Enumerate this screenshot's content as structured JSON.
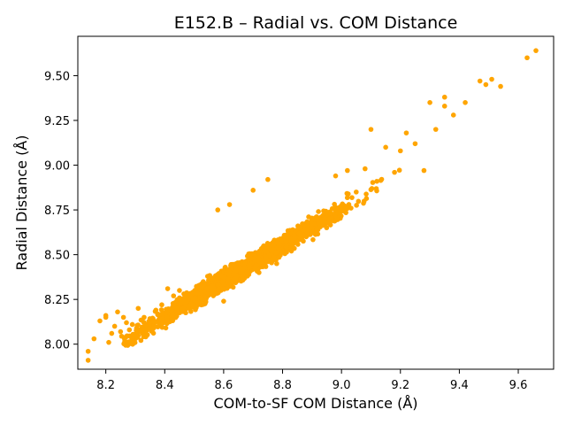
{
  "chart_data": {
    "type": "scatter",
    "title": "E152.B – Radial vs. COM Distance",
    "xlabel": "COM-to-SF COM Distance (Å)",
    "ylabel": "Radial Distance (Å)",
    "xlim": [
      8.105,
      9.72
    ],
    "ylim": [
      7.86,
      9.72
    ],
    "xticks": [
      "8.2",
      "8.4",
      "8.6",
      "8.8",
      "9.0",
      "9.2",
      "9.4",
      "9.6"
    ],
    "yticks": [
      "8.00",
      "8.25",
      "8.50",
      "8.75",
      "9.00",
      "9.25",
      "9.50"
    ],
    "marker_color": "#ffa500",
    "grid": false,
    "trend": {
      "slope": 1.01,
      "intercept": -0.33,
      "spread": 0.045
    },
    "points": [
      [
        8.14,
        7.96
      ],
      [
        8.14,
        7.91
      ],
      [
        8.16,
        8.03
      ],
      [
        8.18,
        8.13
      ],
      [
        8.2,
        8.16
      ],
      [
        8.2,
        8.15
      ],
      [
        8.21,
        8.01
      ],
      [
        8.22,
        8.06
      ],
      [
        8.23,
        8.1
      ],
      [
        8.24,
        8.18
      ],
      [
        8.25,
        8.07
      ],
      [
        8.26,
        8.15
      ],
      [
        8.27,
        8.12
      ],
      [
        8.28,
        8.08
      ],
      [
        8.29,
        8.11
      ],
      [
        8.31,
        8.2
      ],
      [
        8.33,
        8.15
      ],
      [
        8.35,
        8.09
      ],
      [
        8.37,
        8.19
      ],
      [
        8.39,
        8.22
      ],
      [
        8.41,
        8.31
      ],
      [
        8.43,
        8.27
      ],
      [
        8.45,
        8.3
      ],
      [
        8.48,
        8.21
      ],
      [
        8.52,
        8.26
      ],
      [
        8.57,
        8.28
      ],
      [
        8.6,
        8.24
      ],
      [
        8.63,
        8.35
      ],
      [
        8.68,
        8.38
      ],
      [
        8.72,
        8.4
      ],
      [
        8.78,
        8.45
      ],
      [
        8.83,
        8.52
      ],
      [
        8.88,
        8.6
      ],
      [
        8.94,
        8.68
      ],
      [
        9.0,
        8.75
      ],
      [
        9.05,
        8.85
      ],
      [
        9.12,
        8.91
      ],
      [
        9.2,
        9.08
      ],
      [
        9.25,
        9.12
      ],
      [
        9.32,
        9.2
      ],
      [
        9.38,
        9.28
      ],
      [
        9.42,
        9.35
      ],
      [
        9.47,
        9.47
      ],
      [
        9.49,
        9.45
      ],
      [
        9.51,
        9.48
      ],
      [
        9.54,
        9.44
      ],
      [
        9.63,
        9.6
      ],
      [
        9.66,
        9.64
      ],
      [
        8.58,
        8.75
      ],
      [
        8.62,
        8.78
      ],
      [
        8.7,
        8.86
      ],
      [
        8.75,
        8.92
      ],
      [
        9.1,
        9.2
      ],
      [
        9.15,
        9.1
      ],
      [
        9.3,
        9.35
      ],
      [
        9.35,
        9.38
      ],
      [
        9.22,
        9.18
      ],
      [
        9.08,
        8.98
      ],
      [
        9.18,
        8.96
      ],
      [
        9.28,
        8.97
      ],
      [
        9.35,
        9.33
      ],
      [
        9.02,
        8.97
      ],
      [
        8.98,
        8.94
      ]
    ]
  }
}
